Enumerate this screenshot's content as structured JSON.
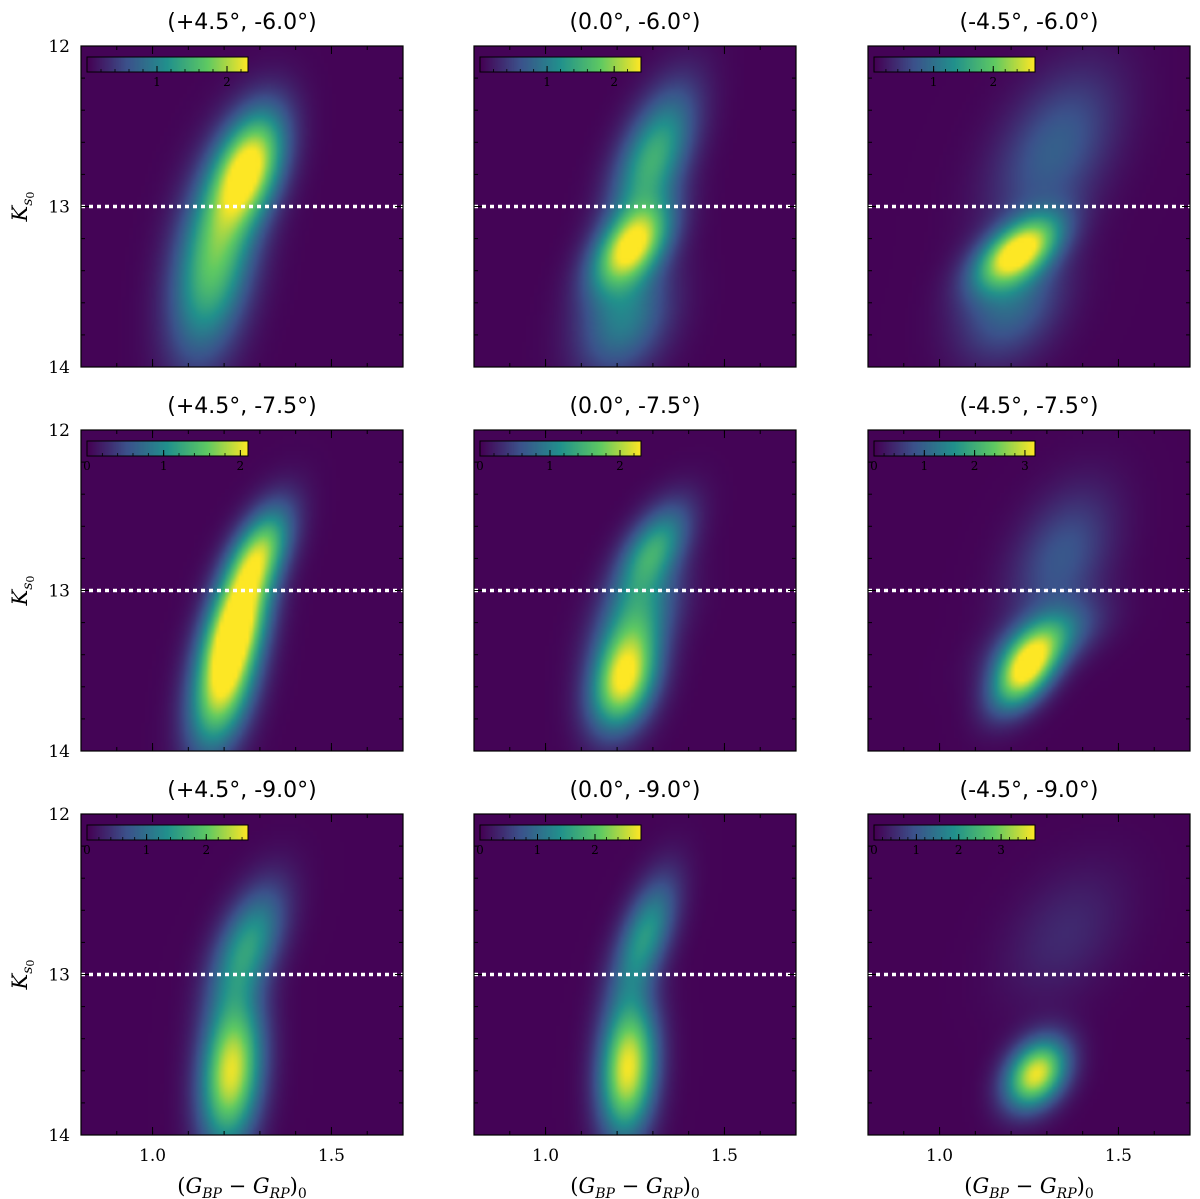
{
  "figure": {
    "xlabel": "(G_BP − G_RP)_0",
    "ylabel": "K_s0",
    "xlim": [
      0.8,
      1.7
    ],
    "ylim": [
      14,
      12
    ],
    "xticks": [
      1.0,
      1.5
    ],
    "xtick_labels": [
      "1.0",
      "1.5"
    ],
    "yticks": [
      12,
      13,
      14
    ],
    "ytick_labels": [
      "12",
      "13",
      "14"
    ],
    "reference_line": 13.0,
    "colormap": "viridis",
    "colormap_stops": [
      "#440154",
      "#3b528b",
      "#21918c",
      "#5ec962",
      "#fde725"
    ]
  },
  "chart_data": [
    {
      "type": "heatmap",
      "title": "(+4.5°, -6.0°)",
      "colorbar": {
        "max": 2.3,
        "ticks": [
          1,
          2
        ],
        "tick_labels": [
          "1",
          "2"
        ]
      },
      "blobs": [
        {
          "cx": 1.27,
          "cy": 12.75,
          "sx": 0.07,
          "sy": 0.25,
          "rho": -0.4,
          "amp": 2.2
        },
        {
          "cx": 1.17,
          "cy": 13.35,
          "sx": 0.08,
          "sy": 0.4,
          "rho": -0.35,
          "amp": 1.65
        }
      ]
    },
    {
      "type": "heatmap",
      "title": "(0.0°, -6.0°)",
      "colorbar": {
        "max": 2.4,
        "ticks": [
          1,
          2
        ],
        "tick_labels": [
          "1",
          "2"
        ]
      },
      "blobs": [
        {
          "cx": 1.24,
          "cy": 13.25,
          "sx": 0.075,
          "sy": 0.18,
          "rho": -0.5,
          "amp": 2.2
        },
        {
          "cx": 1.3,
          "cy": 12.7,
          "sx": 0.08,
          "sy": 0.3,
          "rho": -0.55,
          "amp": 1.5
        },
        {
          "cx": 1.22,
          "cy": 13.7,
          "sx": 0.09,
          "sy": 0.25,
          "rho": -0.3,
          "amp": 1.0
        }
      ]
    },
    {
      "type": "heatmap",
      "title": "(-4.5°, -6.0°)",
      "colorbar": {
        "max": 2.7,
        "ticks": [
          1,
          2
        ],
        "tick_labels": [
          "1",
          "2"
        ]
      },
      "blobs": [
        {
          "cx": 1.22,
          "cy": 13.28,
          "sx": 0.08,
          "sy": 0.15,
          "rho": -0.55,
          "amp": 2.6
        },
        {
          "cx": 1.32,
          "cy": 12.65,
          "sx": 0.12,
          "sy": 0.35,
          "rho": -0.45,
          "amp": 0.8
        },
        {
          "cx": 1.2,
          "cy": 13.6,
          "sx": 0.1,
          "sy": 0.25,
          "rho": -0.3,
          "amp": 0.9
        }
      ]
    },
    {
      "type": "heatmap",
      "title": "(+4.5°, -7.5°)",
      "colorbar": {
        "max": 2.1,
        "ticks": [
          0,
          1,
          2
        ],
        "tick_labels": [
          "0",
          "1",
          "2"
        ]
      },
      "blobs": [
        {
          "cx": 1.2,
          "cy": 13.55,
          "sx": 0.065,
          "sy": 0.3,
          "rho": -0.4,
          "amp": 2.1
        },
        {
          "cx": 1.29,
          "cy": 12.8,
          "sx": 0.065,
          "sy": 0.22,
          "rho": -0.55,
          "amp": 1.85
        },
        {
          "cx": 1.24,
          "cy": 13.2,
          "sx": 0.06,
          "sy": 0.2,
          "rho": -0.4,
          "amp": 1.3
        }
      ]
    },
    {
      "type": "heatmap",
      "title": "(0.0°, -7.5°)",
      "colorbar": {
        "max": 2.3,
        "ticks": [
          0,
          1,
          2
        ],
        "tick_labels": [
          "0",
          "1",
          "2"
        ]
      },
      "blobs": [
        {
          "cx": 1.22,
          "cy": 13.55,
          "sx": 0.065,
          "sy": 0.22,
          "rho": -0.3,
          "amp": 2.3
        },
        {
          "cx": 1.3,
          "cy": 12.75,
          "sx": 0.07,
          "sy": 0.2,
          "rho": -0.55,
          "amp": 1.35
        },
        {
          "cx": 1.26,
          "cy": 13.15,
          "sx": 0.08,
          "sy": 0.2,
          "rho": -0.4,
          "amp": 0.9
        }
      ]
    },
    {
      "type": "heatmap",
      "title": "(-4.5°, -7.5°)",
      "colorbar": {
        "max": 3.2,
        "ticks": [
          0,
          1,
          2,
          3
        ],
        "tick_labels": [
          "0",
          "1",
          "2",
          "3"
        ]
      },
      "blobs": [
        {
          "cx": 1.24,
          "cy": 13.5,
          "sx": 0.065,
          "sy": 0.17,
          "rho": -0.5,
          "amp": 3.1
        },
        {
          "cx": 1.34,
          "cy": 12.8,
          "sx": 0.1,
          "sy": 0.3,
          "rho": -0.4,
          "amp": 0.85
        },
        {
          "cx": 1.3,
          "cy": 13.3,
          "sx": 0.1,
          "sy": 0.15,
          "rho": -0.5,
          "amp": 1.1
        }
      ]
    },
    {
      "type": "heatmap",
      "title": "(+4.5°, -9.0°)",
      "colorbar": {
        "max": 2.7,
        "ticks": [
          0,
          1,
          2
        ],
        "tick_labels": [
          "0",
          "1",
          "2"
        ]
      },
      "blobs": [
        {
          "cx": 1.22,
          "cy": 13.6,
          "sx": 0.06,
          "sy": 0.33,
          "rho": -0.2,
          "amp": 2.6
        },
        {
          "cx": 1.27,
          "cy": 12.8,
          "sx": 0.07,
          "sy": 0.25,
          "rho": -0.5,
          "amp": 1.4
        }
      ]
    },
    {
      "type": "heatmap",
      "title": "(0.0°, -9.0°)",
      "colorbar": {
        "max": 2.8,
        "ticks": [
          0,
          1,
          2
        ],
        "tick_labels": [
          "0",
          "1",
          "2"
        ]
      },
      "blobs": [
        {
          "cx": 1.23,
          "cy": 13.58,
          "sx": 0.055,
          "sy": 0.3,
          "rho": -0.15,
          "amp": 2.75
        },
        {
          "cx": 1.28,
          "cy": 12.75,
          "sx": 0.06,
          "sy": 0.25,
          "rho": -0.55,
          "amp": 1.45
        }
      ]
    },
    {
      "type": "heatmap",
      "title": "(-4.5°, -9.0°)",
      "colorbar": {
        "max": 3.8,
        "ticks": [
          0,
          1,
          2,
          3
        ],
        "tick_labels": [
          "0",
          "1",
          "2",
          "3"
        ]
      },
      "blobs": [
        {
          "cx": 1.27,
          "cy": 13.62,
          "sx": 0.06,
          "sy": 0.15,
          "rho": -0.3,
          "amp": 3.7
        },
        {
          "cx": 1.35,
          "cy": 12.75,
          "sx": 0.12,
          "sy": 0.3,
          "rho": -0.4,
          "amp": 0.45
        }
      ]
    }
  ]
}
